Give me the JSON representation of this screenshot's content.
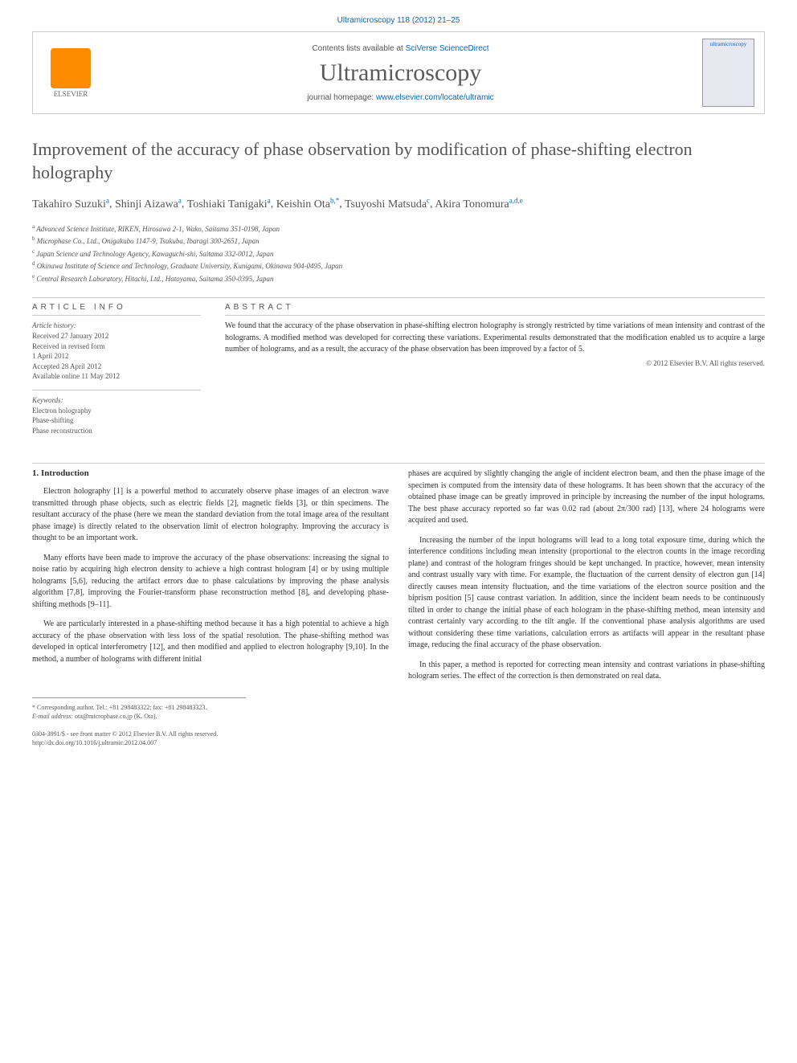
{
  "header": {
    "citation": "Ultramicroscopy 118 (2012) 21–25",
    "contents_label": "Contents lists available at",
    "contents_link": "SciVerse ScienceDirect",
    "journal": "Ultramicroscopy",
    "homepage_label": "journal homepage:",
    "homepage_url": "www.elsevier.com/locate/ultramic",
    "publisher": "ELSEVIER",
    "cover_label": "ultramicroscopy"
  },
  "article": {
    "title": "Improvement of the accuracy of phase observation by modification of phase-shifting electron holography",
    "authors": [
      {
        "name": "Takahiro Suzuki",
        "aff": "a"
      },
      {
        "name": "Shinji Aizawa",
        "aff": "a"
      },
      {
        "name": "Toshiaki Tanigaki",
        "aff": "a"
      },
      {
        "name": "Keishin Ota",
        "aff": "b,*"
      },
      {
        "name": "Tsuyoshi Matsuda",
        "aff": "c"
      },
      {
        "name": "Akira Tonomura",
        "aff": "a,d,e"
      }
    ],
    "affiliations": [
      {
        "mark": "a",
        "text": "Advanced Science Institute, RIKEN, Hirosawa 2-1, Wako, Saitama 351-0198, Japan"
      },
      {
        "mark": "b",
        "text": "Microphase Co., Ltd., Onigakubo 1147-9, Tsukuba, Ibaragi 300-2651, Japan"
      },
      {
        "mark": "c",
        "text": "Japan Science and Technology Agency, Kawaguchi-shi, Saitama 332-0012, Japan"
      },
      {
        "mark": "d",
        "text": "Okinawa Institute of Science and Technology, Graduate University, Kunigami, Okinawa 904-0495, Japan"
      },
      {
        "mark": "e",
        "text": "Central Research Laboratory, Hitachi, Ltd., Hatoyama, Saitama 350-0395, Japan"
      }
    ]
  },
  "info": {
    "heading": "ARTICLE INFO",
    "history_label": "Article history:",
    "history": [
      "Received 27 January 2012",
      "Received in revised form",
      "1 April 2012",
      "Accepted 28 April 2012",
      "Available online 11 May 2012"
    ],
    "keywords_label": "Keywords:",
    "keywords": [
      "Electron holography",
      "Phase-shifting",
      "Phase reconstruction"
    ]
  },
  "abstract": {
    "heading": "ABSTRACT",
    "text": "We found that the accuracy of the phase observation in phase-shifting electron holography is strongly restricted by time variations of mean intensity and contrast of the holograms. A modified method was developed for correcting these variations. Experimental results demonstrated that the modification enabled us to acquire a large number of holograms, and as a result, the accuracy of the phase observation has been improved by a factor of 5.",
    "copyright": "© 2012 Elsevier B.V. All rights reserved."
  },
  "body": {
    "section_heading": "1. Introduction",
    "left_paras": [
      "Electron holography [1] is a powerful method to accurately observe phase images of an electron wave transmitted through phase objects, such as electric fields [2], magnetic fields [3], or thin specimens. The resultant accuracy of the phase (here we mean the standard deviation from the total image area of the resultant phase image) is directly related to the observation limit of electron holography. Improving the accuracy is thought to be an important work.",
      "Many efforts have been made to improve the accuracy of the phase observations: increasing the signal to noise ratio by acquiring high electron density to achieve a high contrast hologram [4] or by using multiple holograms [5,6], reducing the artifact errors due to phase calculations by improving the phase analysis algorithm [7,8], improving the Fourier-transform phase reconstruction method [8], and developing phase-shifting methods [9–11].",
      "We are particularly interested in a phase-shifting method because it has a high potential to achieve a high accuracy of the phase observation with less loss of the spatial resolution. The phase-shifting method was developed in optical interferometry [12], and then modified and applied to electron holography [9,10]. In the method, a number of holograms with different initial"
    ],
    "right_paras": [
      "phases are acquired by slightly changing the angle of incident electron beam, and then the phase image of the specimen is computed from the intensity data of these holograms. It has been shown that the accuracy of the obtained phase image can be greatly improved in principle by increasing the number of the input holograms. The best phase accuracy reported so far was 0.02 rad (about 2π/300 rad) [13], where 24 holograms were acquired and used.",
      "Increasing the number of the input holograms will lead to a long total exposure time, during which the interference conditions including mean intensity (proportional to the electron counts in the image recording plane) and contrast of the hologram fringes should be kept unchanged. In practice, however, mean intensity and contrast usually vary with time. For example, the fluctuation of the current density of electron gun [14] directly causes mean intensity fluctuation, and the time variations of the electron source position and the biprism position [5] cause contrast variation. In addition, since the incident beam needs to be continuously tilted in order to change the initial phase of each hologram in the phase-shifting method, mean intensity and contrast certainly vary according to the tilt angle. If the conventional phase analysis algorithms are used without considering these time variations, calculation errors as artifacts will appear in the resultant phase image, reducing the final accuracy of the phase observation.",
      "In this paper, a method is reported for correcting mean intensity and contrast variations in phase-shifting hologram series. The effect of the correction is then demonstrated on real data."
    ]
  },
  "footnote": {
    "corresponding": "* Corresponding author. Tel.: +81 298483322; fax: +81 298483323.",
    "email_label": "E-mail address:",
    "email": "ota@microphase.co.jp (K. Ota)."
  },
  "footer": {
    "issn": "0304-3991/$ - see front matter © 2012 Elsevier B.V. All rights reserved.",
    "doi": "http://dx.doi.org/10.1016/j.ultramic.2012.04.007"
  },
  "colors": {
    "link": "#0066cc",
    "text": "#333333",
    "muted": "#555555",
    "border": "#cccccc",
    "elsevier_orange": "#ff8c00"
  },
  "fonts": {
    "body": "Georgia, 'Times New Roman', serif",
    "ui": "Arial, sans-serif",
    "title_size_pt": 22,
    "body_size_pt": 10,
    "affil_size_pt": 9
  }
}
